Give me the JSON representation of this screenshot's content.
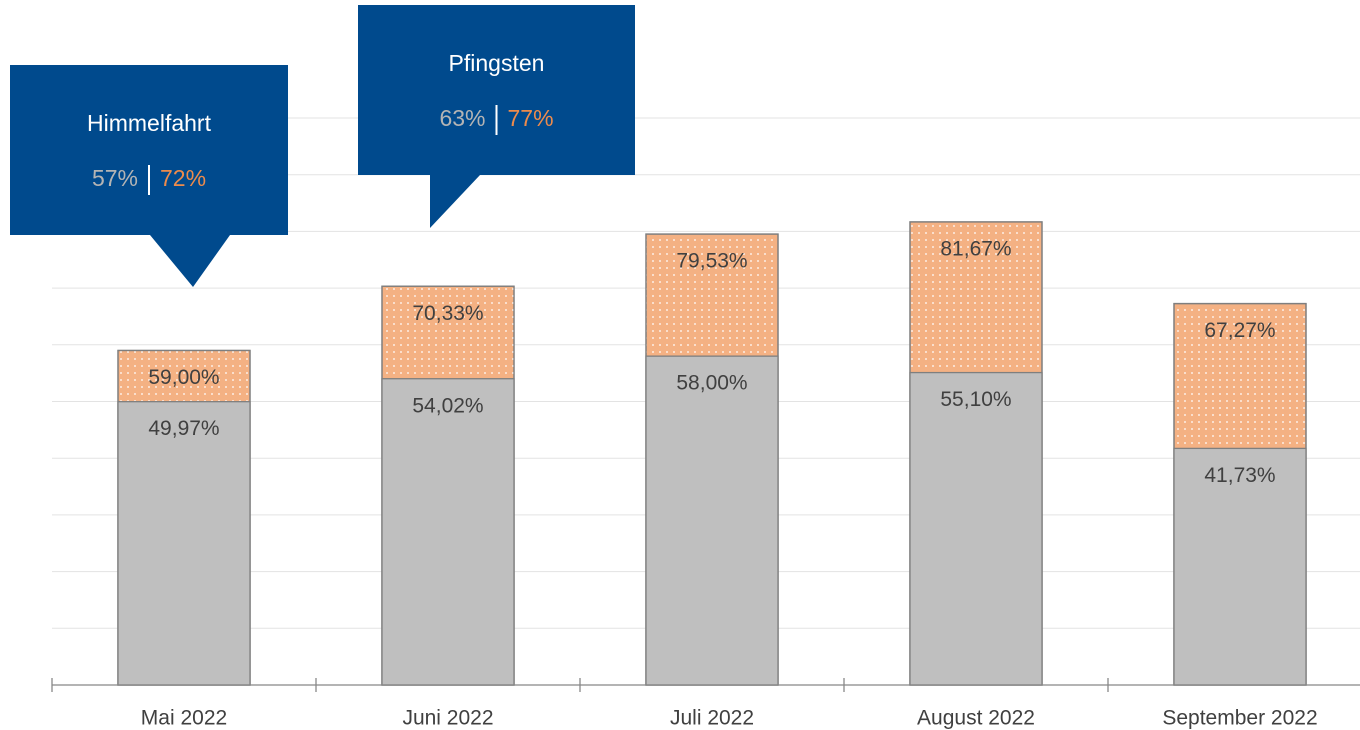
{
  "chart_data": {
    "type": "bar",
    "categories": [
      "Mai 2022",
      "Juni 2022",
      "Juli 2022",
      "August 2022",
      "September 2022"
    ],
    "series": [
      {
        "color": "#f4b183",
        "pattern": "dots",
        "values": [
          59.0,
          70.33,
          79.53,
          81.67,
          67.27
        ],
        "value_labels": [
          "59,00%",
          "70,33%",
          "79,53%",
          "81,67%",
          "67,27%"
        ]
      },
      {
        "color": "#bfbfbf",
        "values": [
          49.97,
          54.02,
          58.0,
          55.1,
          41.73
        ],
        "value_labels": [
          "49,97%",
          "54,02%",
          "58,00%",
          "55,10%",
          "41,73%"
        ]
      }
    ],
    "overlap": true,
    "ylim": [
      0,
      100
    ],
    "yticks": [
      0,
      10,
      20,
      30,
      40,
      50,
      60,
      70,
      80,
      90,
      100
    ],
    "grid": true,
    "annotations": [
      {
        "text": "Himmelfahrt",
        "category": 0,
        "color": "#004a8d",
        "values": [
          57,
          72
        ],
        "value_labels": [
          "57%",
          "72%"
        ],
        "value_colors": [
          "#b4b4b4",
          "#ed8b4c"
        ]
      },
      {
        "text": "Pfingsten",
        "category": 1,
        "color": "#004a8d",
        "values": [
          63,
          77
        ],
        "value_labels": [
          "63%",
          "77%"
        ],
        "value_colors": [
          "#b4b4b4",
          "#ed8b4c"
        ]
      }
    ]
  }
}
